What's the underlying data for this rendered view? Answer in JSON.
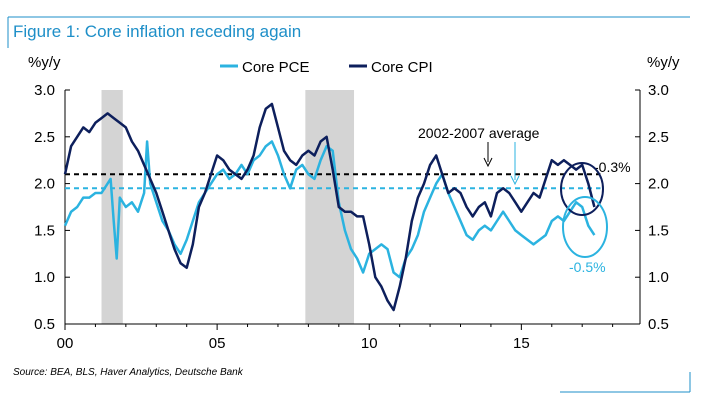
{
  "figure": {
    "title": "Figure 1: Core inflation receding again",
    "source": "Source: BEA, BLS, Haver Analytics, Deutsche Bank"
  },
  "colors": {
    "title": "#1e8fc8",
    "frame": "#1e8fc8",
    "pce": "#2bb3e0",
    "cpi": "#0d1f5c",
    "recession": "#d4d4d4",
    "avg_cpi": "#000000",
    "avg_pce": "#2bb3e0"
  },
  "chart_data": {
    "type": "line",
    "ylabel_left": "%y/y",
    "ylabel_right": "%y/y",
    "ylim": [
      0.5,
      3.0
    ],
    "xlim": [
      2000,
      2018.9
    ],
    "y_ticks": [
      "0.5",
      "1.0",
      "1.5",
      "2.0",
      "2.5",
      "3.0"
    ],
    "x_ticks": [
      {
        "value": 2000,
        "label": "00"
      },
      {
        "value": 2005,
        "label": "05"
      },
      {
        "value": 2010,
        "label": "10"
      },
      {
        "value": 2015,
        "label": "15"
      }
    ],
    "legend": [
      {
        "name": "Core PCE",
        "series": 0
      },
      {
        "name": "Core CPI",
        "series": 1
      }
    ],
    "recessions": [
      [
        2001.2,
        2001.9
      ],
      [
        2007.9,
        2009.5
      ]
    ],
    "reference_lines": [
      {
        "label": "2002-2007 average",
        "series": 1,
        "value": 2.1
      },
      {
        "label": "",
        "series": 0,
        "value": 1.95
      }
    ],
    "annotations": [
      {
        "text": "2002-2007 average"
      },
      {
        "text": "-0.3%",
        "series": 1
      },
      {
        "text": "-0.5%",
        "series": 0
      }
    ],
    "series": [
      {
        "name": "Core PCE",
        "points": [
          [
            2000.0,
            1.55
          ],
          [
            2000.2,
            1.7
          ],
          [
            2000.4,
            1.75
          ],
          [
            2000.6,
            1.85
          ],
          [
            2000.8,
            1.85
          ],
          [
            2001.0,
            1.9
          ],
          [
            2001.2,
            1.9
          ],
          [
            2001.4,
            2.0
          ],
          [
            2001.5,
            2.05
          ],
          [
            2001.6,
            1.6
          ],
          [
            2001.7,
            1.2
          ],
          [
            2001.8,
            1.85
          ],
          [
            2002.0,
            1.75
          ],
          [
            2002.2,
            1.8
          ],
          [
            2002.4,
            1.7
          ],
          [
            2002.6,
            1.9
          ],
          [
            2002.7,
            2.45
          ],
          [
            2002.8,
            2.0
          ],
          [
            2003.0,
            1.8
          ],
          [
            2003.2,
            1.6
          ],
          [
            2003.4,
            1.5
          ],
          [
            2003.6,
            1.35
          ],
          [
            2003.8,
            1.25
          ],
          [
            2004.0,
            1.4
          ],
          [
            2004.2,
            1.6
          ],
          [
            2004.4,
            1.8
          ],
          [
            2004.6,
            1.9
          ],
          [
            2004.8,
            2.0
          ],
          [
            2005.0,
            2.1
          ],
          [
            2005.2,
            2.15
          ],
          [
            2005.4,
            2.05
          ],
          [
            2005.6,
            2.1
          ],
          [
            2005.8,
            2.2
          ],
          [
            2006.0,
            2.1
          ],
          [
            2006.2,
            2.25
          ],
          [
            2006.4,
            2.3
          ],
          [
            2006.6,
            2.4
          ],
          [
            2006.8,
            2.45
          ],
          [
            2007.0,
            2.3
          ],
          [
            2007.2,
            2.1
          ],
          [
            2007.4,
            1.95
          ],
          [
            2007.6,
            2.15
          ],
          [
            2007.8,
            2.2
          ],
          [
            2008.0,
            2.1
          ],
          [
            2008.2,
            2.05
          ],
          [
            2008.4,
            2.25
          ],
          [
            2008.6,
            2.4
          ],
          [
            2008.8,
            2.35
          ],
          [
            2009.0,
            1.8
          ],
          [
            2009.2,
            1.5
          ],
          [
            2009.4,
            1.3
          ],
          [
            2009.6,
            1.2
          ],
          [
            2009.8,
            1.05
          ],
          [
            2010.0,
            1.25
          ],
          [
            2010.2,
            1.3
          ],
          [
            2010.4,
            1.35
          ],
          [
            2010.6,
            1.3
          ],
          [
            2010.8,
            1.05
          ],
          [
            2011.0,
            1.0
          ],
          [
            2011.2,
            1.2
          ],
          [
            2011.4,
            1.3
          ],
          [
            2011.6,
            1.45
          ],
          [
            2011.8,
            1.7
          ],
          [
            2012.0,
            1.85
          ],
          [
            2012.2,
            2.0
          ],
          [
            2012.4,
            2.1
          ],
          [
            2012.6,
            1.9
          ],
          [
            2012.8,
            1.75
          ],
          [
            2013.0,
            1.6
          ],
          [
            2013.2,
            1.45
          ],
          [
            2013.4,
            1.4
          ],
          [
            2013.6,
            1.5
          ],
          [
            2013.8,
            1.55
          ],
          [
            2014.0,
            1.5
          ],
          [
            2014.2,
            1.6
          ],
          [
            2014.4,
            1.7
          ],
          [
            2014.6,
            1.6
          ],
          [
            2014.8,
            1.5
          ],
          [
            2015.0,
            1.45
          ],
          [
            2015.2,
            1.4
          ],
          [
            2015.4,
            1.35
          ],
          [
            2015.6,
            1.4
          ],
          [
            2015.8,
            1.45
          ],
          [
            2016.0,
            1.6
          ],
          [
            2016.2,
            1.65
          ],
          [
            2016.4,
            1.6
          ],
          [
            2016.6,
            1.7
          ],
          [
            2016.8,
            1.8
          ],
          [
            2017.0,
            1.75
          ],
          [
            2017.2,
            1.55
          ],
          [
            2017.4,
            1.45
          ]
        ]
      },
      {
        "name": "Core CPI",
        "points": [
          [
            2000.0,
            2.1
          ],
          [
            2000.2,
            2.4
          ],
          [
            2000.4,
            2.5
          ],
          [
            2000.6,
            2.6
          ],
          [
            2000.8,
            2.55
          ],
          [
            2001.0,
            2.65
          ],
          [
            2001.2,
            2.7
          ],
          [
            2001.4,
            2.75
          ],
          [
            2001.6,
            2.7
          ],
          [
            2001.8,
            2.65
          ],
          [
            2002.0,
            2.6
          ],
          [
            2002.2,
            2.45
          ],
          [
            2002.4,
            2.35
          ],
          [
            2002.6,
            2.2
          ],
          [
            2002.8,
            2.05
          ],
          [
            2003.0,
            1.9
          ],
          [
            2003.2,
            1.7
          ],
          [
            2003.4,
            1.5
          ],
          [
            2003.6,
            1.3
          ],
          [
            2003.8,
            1.15
          ],
          [
            2004.0,
            1.1
          ],
          [
            2004.2,
            1.35
          ],
          [
            2004.4,
            1.75
          ],
          [
            2004.6,
            1.9
          ],
          [
            2004.8,
            2.1
          ],
          [
            2005.0,
            2.3
          ],
          [
            2005.2,
            2.25
          ],
          [
            2005.4,
            2.15
          ],
          [
            2005.6,
            2.1
          ],
          [
            2005.8,
            2.05
          ],
          [
            2006.0,
            2.15
          ],
          [
            2006.2,
            2.3
          ],
          [
            2006.4,
            2.6
          ],
          [
            2006.6,
            2.8
          ],
          [
            2006.8,
            2.85
          ],
          [
            2007.0,
            2.6
          ],
          [
            2007.2,
            2.35
          ],
          [
            2007.4,
            2.25
          ],
          [
            2007.6,
            2.2
          ],
          [
            2007.8,
            2.3
          ],
          [
            2008.0,
            2.35
          ],
          [
            2008.2,
            2.3
          ],
          [
            2008.4,
            2.45
          ],
          [
            2008.6,
            2.5
          ],
          [
            2008.8,
            2.15
          ],
          [
            2009.0,
            1.75
          ],
          [
            2009.2,
            1.7
          ],
          [
            2009.4,
            1.7
          ],
          [
            2009.6,
            1.65
          ],
          [
            2009.8,
            1.65
          ],
          [
            2010.0,
            1.35
          ],
          [
            2010.2,
            1.0
          ],
          [
            2010.4,
            0.9
          ],
          [
            2010.6,
            0.75
          ],
          [
            2010.8,
            0.65
          ],
          [
            2011.0,
            0.9
          ],
          [
            2011.2,
            1.2
          ],
          [
            2011.4,
            1.6
          ],
          [
            2011.6,
            1.85
          ],
          [
            2011.8,
            2.0
          ],
          [
            2012.0,
            2.2
          ],
          [
            2012.2,
            2.3
          ],
          [
            2012.4,
            2.1
          ],
          [
            2012.6,
            1.9
          ],
          [
            2012.8,
            1.95
          ],
          [
            2013.0,
            1.9
          ],
          [
            2013.2,
            1.75
          ],
          [
            2013.4,
            1.65
          ],
          [
            2013.6,
            1.75
          ],
          [
            2013.8,
            1.8
          ],
          [
            2014.0,
            1.65
          ],
          [
            2014.2,
            1.9
          ],
          [
            2014.4,
            1.95
          ],
          [
            2014.6,
            1.9
          ],
          [
            2014.8,
            1.8
          ],
          [
            2015.0,
            1.7
          ],
          [
            2015.2,
            1.8
          ],
          [
            2015.4,
            1.9
          ],
          [
            2015.6,
            1.85
          ],
          [
            2015.8,
            2.05
          ],
          [
            2016.0,
            2.25
          ],
          [
            2016.2,
            2.2
          ],
          [
            2016.4,
            2.25
          ],
          [
            2016.6,
            2.2
          ],
          [
            2016.8,
            2.15
          ],
          [
            2017.0,
            2.2
          ],
          [
            2017.2,
            2.0
          ],
          [
            2017.4,
            1.75
          ]
        ]
      }
    ]
  }
}
